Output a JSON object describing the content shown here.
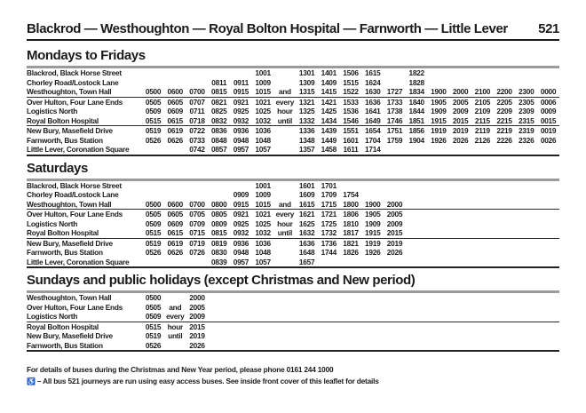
{
  "page": {
    "title": "Blackrod — Westhoughton — Royal Bolton Hospital — Farnworth — Little Lever",
    "route_number": "521"
  },
  "sections": [
    {
      "heading": "Mondays to Fridays",
      "rows": [
        {
          "stop": "Blackrod, Black Horse Street",
          "times": [
            "",
            "",
            "",
            "",
            "",
            "1001",
            "",
            "1301",
            "1401",
            "1506",
            "1615",
            "",
            "1822"
          ]
        },
        {
          "stop": "Chorley Road/Lostock Lane",
          "times": [
            "",
            "",
            "",
            "0811",
            "0911",
            "1009",
            "",
            "1309",
            "1409",
            "1515",
            "1624",
            "",
            "1828"
          ]
        },
        {
          "stop": "Westhoughton, Town Hall",
          "times": [
            "0500",
            "0600",
            "0700",
            "0815",
            "0915",
            "1015",
            "and",
            "1315",
            "1415",
            "1522",
            "1630",
            "1727",
            "1834",
            "1900",
            "2000",
            "2100",
            "2200",
            "2300",
            "0000"
          ]
        },
        {
          "stop": "Over Hulton, Four Lane Ends",
          "times": [
            "0505",
            "0605",
            "0707",
            "0821",
            "0921",
            "1021",
            "every",
            "1321",
            "1421",
            "1533",
            "1636",
            "1733",
            "1840",
            "1905",
            "2005",
            "2105",
            "2205",
            "2305",
            "0006"
          ]
        },
        {
          "stop": "Logistics North",
          "times": [
            "0509",
            "0609",
            "0711",
            "0825",
            "0925",
            "1025",
            "hour",
            "1325",
            "1425",
            "1536",
            "1641",
            "1738",
            "1844",
            "1909",
            "2009",
            "2109",
            "2209",
            "2309",
            "0009"
          ]
        },
        {
          "stop": "Royal Bolton Hospital",
          "times": [
            "0515",
            "0615",
            "0718",
            "0832",
            "0932",
            "1032",
            "until",
            "1332",
            "1434",
            "1546",
            "1649",
            "1746",
            "1851",
            "1915",
            "2015",
            "2115",
            "2215",
            "2315",
            "0015"
          ]
        },
        {
          "stop": "New Bury, Masefield Drive",
          "times": [
            "0519",
            "0619",
            "0722",
            "0836",
            "0936",
            "1036",
            "",
            "1336",
            "1439",
            "1551",
            "1654",
            "1751",
            "1856",
            "1919",
            "2019",
            "2119",
            "2219",
            "2319",
            "0019"
          ]
        },
        {
          "stop": "Farnworth, Bus Station",
          "times": [
            "0526",
            "0626",
            "0733",
            "0848",
            "0948",
            "1048",
            "",
            "1348",
            "1449",
            "1601",
            "1704",
            "1759",
            "1904",
            "1926",
            "2026",
            "2126",
            "2226",
            "2326",
            "0026"
          ]
        },
        {
          "stop": "Little Lever, Coronation Square",
          "times": [
            "",
            "",
            "0742",
            "0857",
            "0957",
            "1057",
            "",
            "1357",
            "1458",
            "1611",
            "1714"
          ]
        }
      ]
    },
    {
      "heading": "Saturdays",
      "rows": [
        {
          "stop": "Blackrod, Black Horse Street",
          "times": [
            "",
            "",
            "",
            "",
            "",
            "1001",
            "",
            "1601",
            "1701"
          ]
        },
        {
          "stop": "Chorley Road/Lostock Lane",
          "times": [
            "",
            "",
            "",
            "",
            "0909",
            "1009",
            "",
            "1609",
            "1709",
            "1754"
          ]
        },
        {
          "stop": "Westhoughton, Town Hall",
          "times": [
            "0500",
            "0600",
            "0700",
            "0800",
            "0915",
            "1015",
            "and",
            "1615",
            "1715",
            "1800",
            "1900",
            "2000"
          ]
        },
        {
          "stop": "Over Hulton, Four Lane Ends",
          "times": [
            "0505",
            "0605",
            "0705",
            "0805",
            "0921",
            "1021",
            "every",
            "1621",
            "1721",
            "1806",
            "1905",
            "2005"
          ]
        },
        {
          "stop": "Logistics North",
          "times": [
            "0509",
            "0609",
            "0709",
            "0809",
            "0925",
            "1025",
            "hour",
            "1625",
            "1725",
            "1810",
            "1909",
            "2009"
          ]
        },
        {
          "stop": "Royal Bolton Hospital",
          "times": [
            "0515",
            "0615",
            "0715",
            "0815",
            "0932",
            "1032",
            "until",
            "1632",
            "1732",
            "1817",
            "1915",
            "2015"
          ]
        },
        {
          "stop": "New Bury, Masefield Drive",
          "times": [
            "0519",
            "0619",
            "0719",
            "0819",
            "0936",
            "1036",
            "",
            "1636",
            "1736",
            "1821",
            "1919",
            "2019"
          ]
        },
        {
          "stop": "Farnworth, Bus Station",
          "times": [
            "0526",
            "0626",
            "0726",
            "0830",
            "0948",
            "1048",
            "",
            "1648",
            "1744",
            "1826",
            "1926",
            "2026"
          ]
        },
        {
          "stop": "Little Lever, Coronation Square",
          "times": [
            "",
            "",
            "",
            "0839",
            "0957",
            "1057",
            "",
            "1657"
          ]
        }
      ]
    },
    {
      "heading": "Sundays and public holidays (except Christmas and New period)",
      "rows": [
        {
          "stop": "Westhoughton, Town Hall",
          "times": [
            "0500",
            "",
            "2000"
          ]
        },
        {
          "stop": "Over Hulton, Four Lane Ends",
          "times": [
            "0505",
            "and",
            "2005"
          ]
        },
        {
          "stop": "Logistics North",
          "times": [
            "0509",
            "every",
            "2009"
          ]
        },
        {
          "stop": "Royal Bolton Hospital",
          "times": [
            "0515",
            "hour",
            "2015"
          ]
        },
        {
          "stop": "New Bury, Masefield Drive",
          "times": [
            "0519",
            "until",
            "2019"
          ]
        },
        {
          "stop": "Farnworth, Bus Station",
          "times": [
            "0526",
            "",
            "2026"
          ]
        }
      ]
    }
  ],
  "footer": {
    "info_line": "For details of buses during the Christmas and New Year period, please phone 0161 244 1000",
    "easy_access_symbol": "♿",
    "easy_access_note": "– All bus 521 journeys are run using easy access buses. See inside front cover of this leaflet for details"
  }
}
